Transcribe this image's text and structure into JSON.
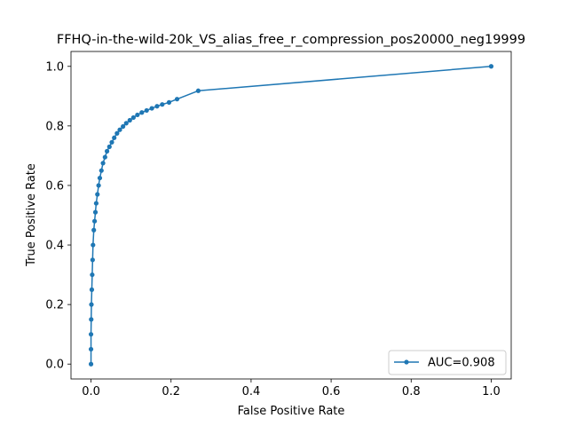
{
  "chart_data": {
    "type": "line",
    "title": "FFHQ-in-the-wild-20k_VS_alias_free_r_compression_pos20000_neg19999",
    "xlabel": "False Positive Rate",
    "ylabel": "True Positive Rate",
    "xlim": [
      -0.05,
      1.05
    ],
    "ylim": [
      -0.05,
      1.05
    ],
    "xticks": [
      0.0,
      0.2,
      0.4,
      0.6,
      0.8,
      1.0
    ],
    "yticks": [
      0.0,
      0.2,
      0.4,
      0.6,
      0.8,
      1.0
    ],
    "xtick_labels": [
      "0.0",
      "0.2",
      "0.4",
      "0.6",
      "0.8",
      "1.0"
    ],
    "ytick_labels": [
      "0.0",
      "0.2",
      "0.4",
      "0.6",
      "0.8",
      "1.0"
    ],
    "grid": false,
    "legend_position": "lower right",
    "series": [
      {
        "name": "AUC=0.908",
        "color": "#1f77b4",
        "marker": "circle",
        "x": [
          0.0,
          0.0,
          0.0,
          0.0005,
          0.001,
          0.002,
          0.003,
          0.004,
          0.005,
          0.007,
          0.009,
          0.011,
          0.013,
          0.016,
          0.019,
          0.022,
          0.026,
          0.03,
          0.035,
          0.04,
          0.046,
          0.052,
          0.058,
          0.065,
          0.072,
          0.08,
          0.088,
          0.097,
          0.106,
          0.116,
          0.127,
          0.139,
          0.152,
          0.165,
          0.178,
          0.195,
          0.215,
          0.268,
          1.0
        ],
        "y": [
          0.0,
          0.05,
          0.1,
          0.15,
          0.2,
          0.25,
          0.3,
          0.35,
          0.4,
          0.45,
          0.48,
          0.51,
          0.54,
          0.57,
          0.6,
          0.625,
          0.65,
          0.675,
          0.695,
          0.715,
          0.73,
          0.745,
          0.76,
          0.775,
          0.787,
          0.798,
          0.809,
          0.819,
          0.828,
          0.837,
          0.845,
          0.852,
          0.859,
          0.866,
          0.872,
          0.879,
          0.89,
          0.918,
          1.0
        ]
      }
    ]
  }
}
